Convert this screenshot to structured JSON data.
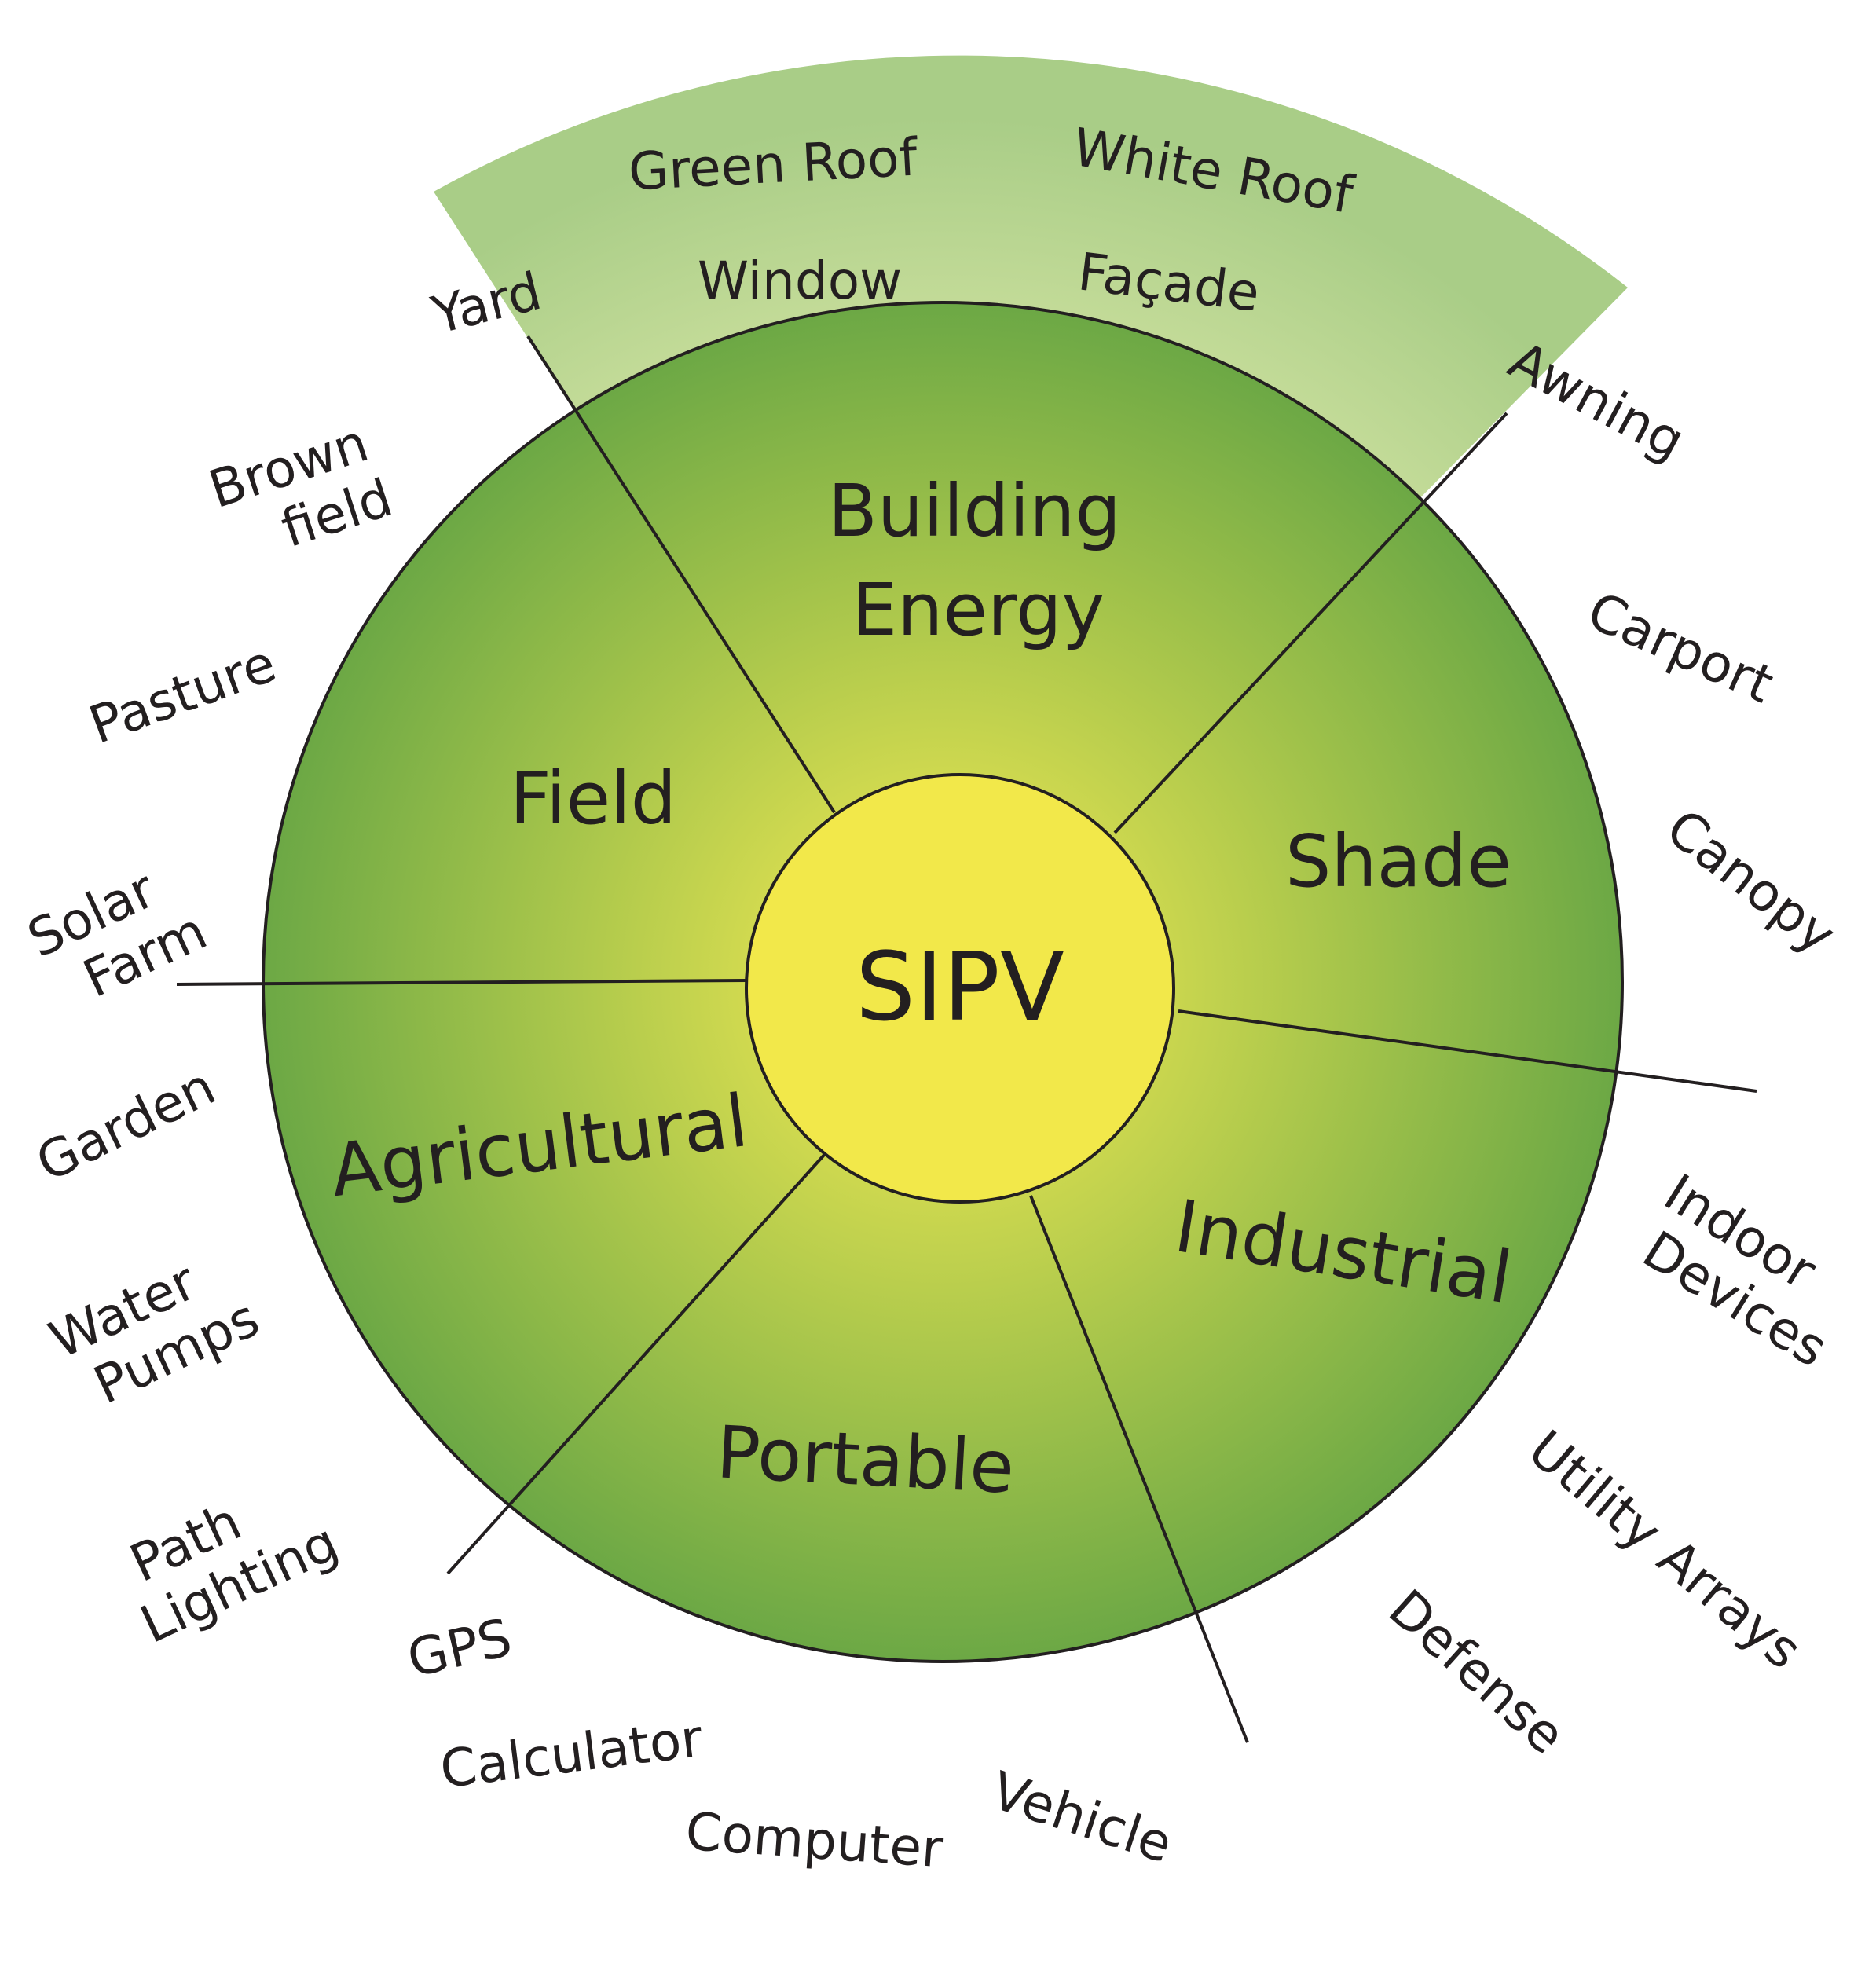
{
  "center": {
    "label": "SIPV"
  },
  "sectors": [
    {
      "label": "Building Energy",
      "lines": [
        "Building",
        "Energy"
      ]
    },
    {
      "label": "Shade"
    },
    {
      "label": "Industrial"
    },
    {
      "label": "Portable"
    },
    {
      "label": "Agricultural"
    },
    {
      "label": "Field"
    }
  ],
  "building_band": [
    "Green Roof",
    "White Roof",
    "Window",
    "Façade"
  ],
  "applications": [
    "Yard",
    "Awning",
    "Carport",
    "Canopy",
    "Indoor Devices",
    "Utility Arrays",
    "Defense",
    "Vehicle",
    "Computer",
    "Calculator",
    "GPS",
    "Path Lighting",
    "Water Pumps",
    "Garden",
    "Solar Farm",
    "Pasture",
    "Brown field"
  ],
  "colors": {
    "band_inner": "#eef2b4",
    "band_outer": "#a9cd87",
    "wheel_inner": "#d6dc50",
    "wheel_outer": "#6ca845",
    "hub": "#f2e84a",
    "stroke": "#231f20",
    "text": "#231f20"
  }
}
